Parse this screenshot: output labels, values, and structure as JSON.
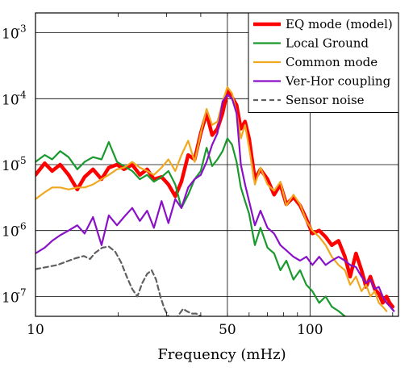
{
  "chart_data": {
    "type": "line",
    "title": "",
    "xlabel": "Frequency (mHz)",
    "ylabel": "",
    "xscale": "log",
    "yscale": "log",
    "xlim": [
      10,
      210
    ],
    "ylim": [
      5e-08,
      0.002
    ],
    "grid": true,
    "legend_position": "top-right",
    "x_ticks": [
      {
        "value": 10,
        "label": "10"
      },
      {
        "value": 50,
        "label": "50"
      },
      {
        "value": 100,
        "label": "100"
      }
    ],
    "y_ticks": [
      {
        "value": 0.001,
        "base": "10",
        "exp": "-3"
      },
      {
        "value": 0.0001,
        "base": "10",
        "exp": "-4"
      },
      {
        "value": 1e-05,
        "base": "10",
        "exp": "-5"
      },
      {
        "value": 1e-06,
        "base": "10",
        "exp": "-6"
      },
      {
        "value": 1e-07,
        "base": "10",
        "exp": "-7"
      }
    ],
    "series": [
      {
        "name": "EQ mode (model)",
        "color": "#ff0000",
        "width": 4.5,
        "dash": "",
        "x": [
          10,
          10.8,
          11.5,
          12.3,
          13.2,
          14.2,
          15.1,
          16.2,
          17.4,
          18.5,
          19.8,
          21,
          22.5,
          24,
          25.5,
          27,
          28.8,
          30.5,
          32.3,
          34,
          36,
          38,
          40,
          42,
          44,
          46,
          48,
          50,
          52,
          54,
          56,
          58,
          60,
          63,
          66,
          70,
          74,
          78,
          82,
          87,
          92,
          97,
          102,
          108,
          114,
          120,
          127,
          134,
          140,
          147,
          154,
          160,
          166,
          172,
          178,
          184,
          190,
          195,
          200
        ],
        "y": [
          7e-06,
          1.05e-05,
          8e-06,
          1e-05,
          7e-06,
          4.2e-06,
          6.5e-06,
          8.5e-06,
          6e-06,
          9e-06,
          1e-05,
          8.5e-06,
          1e-05,
          7e-06,
          8.5e-06,
          6e-06,
          6.5e-06,
          5e-06,
          3.3e-06,
          5.5e-06,
          1.4e-05,
          1.2e-05,
          3e-05,
          6e-05,
          2.8e-05,
          3.5e-05,
          6e-05,
          0.00013,
          0.000105,
          8e-05,
          3.5e-05,
          4.5e-05,
          2.5e-05,
          6e-06,
          8.5e-06,
          6e-06,
          3.5e-06,
          5e-06,
          2.5e-06,
          3.2e-06,
          2.4e-06,
          1.5e-06,
          9e-07,
          1e-06,
          8e-07,
          6e-07,
          7e-07,
          4e-07,
          2e-07,
          4.5e-07,
          2.5e-07,
          1.4e-07,
          2e-07,
          1.3e-07,
          1.1e-07,
          8e-08,
          1e-07,
          8e-08,
          7e-08
        ]
      },
      {
        "name": "Local Ground",
        "color": "#1a9a2e",
        "width": 2.2,
        "dash": "",
        "x": [
          10,
          10.8,
          11.5,
          12.3,
          13.2,
          14.2,
          15.1,
          16.2,
          17.4,
          18.5,
          19.8,
          21,
          22.5,
          24,
          25.5,
          27,
          28.8,
          30.5,
          32.3,
          34,
          36,
          38,
          40,
          42,
          44,
          46,
          48,
          50,
          52,
          54,
          56,
          58,
          60,
          63,
          66,
          70,
          74,
          78,
          82,
          87,
          92,
          97,
          102,
          108,
          114,
          120,
          127,
          134
        ],
        "y": [
          1.1e-05,
          1.4e-05,
          1.2e-05,
          1.6e-05,
          1.3e-05,
          8.5e-06,
          1.1e-05,
          1.3e-05,
          1.2e-05,
          2.2e-05,
          1.1e-05,
          9.5e-06,
          8e-06,
          6e-06,
          7e-06,
          5.5e-06,
          6.5e-06,
          8e-06,
          5e-06,
          2.2e-06,
          3.5e-06,
          6e-06,
          8e-06,
          1.8e-05,
          9.5e-06,
          1.2e-05,
          1.6e-05,
          2.5e-05,
          2e-05,
          1.1e-05,
          4.5e-06,
          2.8e-06,
          1.8e-06,
          6e-07,
          1.1e-06,
          5.5e-07,
          4.5e-07,
          2.5e-07,
          3.5e-07,
          1.8e-07,
          2.5e-07,
          1.5e-07,
          1.2e-07,
          8e-08,
          1e-07,
          7e-08,
          6e-08,
          5e-08
        ]
      },
      {
        "name": "Common mode",
        "color": "#f0a820",
        "width": 2.2,
        "dash": "",
        "x": [
          10,
          10.8,
          11.5,
          12.3,
          13.2,
          14.2,
          15.1,
          16.2,
          17.4,
          18.5,
          19.8,
          21,
          22.5,
          24,
          25.5,
          27,
          28.8,
          30.5,
          32.3,
          34,
          36,
          38,
          40,
          42,
          44,
          46,
          48,
          50,
          52,
          54,
          56,
          58,
          60,
          63,
          66,
          70,
          74,
          78,
          82,
          87,
          92,
          97,
          102,
          108,
          114,
          120,
          127,
          134,
          140,
          147,
          154,
          160,
          166,
          172,
          178,
          184,
          190
        ],
        "y": [
          3e-06,
          3.8e-06,
          4.5e-06,
          4.5e-06,
          4.2e-06,
          4.5e-06,
          4.5e-06,
          5e-06,
          6e-06,
          7e-06,
          8.5e-06,
          9e-06,
          1.1e-05,
          9e-06,
          8e-06,
          7e-06,
          9e-06,
          1.2e-05,
          8e-06,
          1.4e-05,
          2.3e-05,
          1.1e-05,
          3e-05,
          7e-05,
          4e-05,
          4.5e-05,
          9e-05,
          0.00015,
          0.00012,
          6e-05,
          2.5e-05,
          4e-05,
          1.8e-05,
          5e-06,
          9e-06,
          5e-06,
          4e-06,
          5.5e-06,
          2.4e-06,
          3.5e-06,
          2.5e-06,
          1.4e-06,
          1e-06,
          8e-07,
          6e-07,
          4e-07,
          3e-07,
          2.5e-07,
          1.5e-07,
          2e-07,
          1.2e-07,
          1.5e-07,
          1e-07,
          1.2e-07,
          8e-08,
          7e-08,
          6e-08
        ]
      },
      {
        "name": "Ver-Hor coupling",
        "color": "#8a10c8",
        "width": 2.2,
        "dash": "",
        "x": [
          10,
          10.8,
          11.5,
          12.3,
          13.2,
          14.2,
          15.1,
          16.2,
          17.4,
          18.5,
          19.8,
          21,
          22.5,
          24,
          25.5,
          27,
          28.8,
          30.5,
          32.3,
          34,
          36,
          38,
          40,
          42,
          44,
          46,
          48,
          50,
          52,
          54,
          56,
          58,
          60,
          63,
          66,
          70,
          74,
          78,
          82,
          87,
          92,
          97,
          102,
          108,
          114,
          120,
          127,
          134,
          140,
          147,
          154,
          160,
          166,
          172,
          178,
          184,
          190,
          196,
          202
        ],
        "y": [
          4.5e-07,
          5.5e-07,
          7e-07,
          8.5e-07,
          1e-06,
          1.2e-06,
          9e-07,
          1.6e-06,
          6e-07,
          1.7e-06,
          1.2e-06,
          1.6e-06,
          2.2e-06,
          1.4e-06,
          2e-06,
          1.1e-06,
          2.8e-06,
          1.3e-06,
          3e-06,
          2.2e-06,
          4.5e-06,
          6e-06,
          7e-06,
          1.1e-05,
          2e-05,
          3e-05,
          9e-05,
          0.000115,
          0.0001,
          6e-05,
          1e-05,
          5e-06,
          2.8e-06,
          1.2e-06,
          2e-06,
          1.1e-06,
          9e-07,
          6e-07,
          5e-07,
          4e-07,
          3.5e-07,
          4e-07,
          3e-07,
          4e-07,
          3e-07,
          3.5e-07,
          4e-07,
          3.5e-07,
          3e-07,
          2.8e-07,
          2e-07,
          1.6e-07,
          1.8e-07,
          1.3e-07,
          1.4e-07,
          1e-07,
          8e-08,
          7e-08,
          6e-08
        ]
      },
      {
        "name": "Sensor noise",
        "color": "#606060",
        "width": 2.2,
        "dash": "6,4",
        "x": [
          10,
          11,
          12,
          13,
          14,
          15,
          15.8,
          16.5,
          17.5,
          18.5,
          19.5,
          20.5,
          21.5,
          22.5,
          23.5,
          24.5,
          25.5,
          26.5,
          27.5,
          28.5,
          29.5,
          30.5,
          31.5,
          32.5,
          33.5,
          34.5,
          35.5,
          37,
          38.5,
          40
        ],
        "y": [
          2.6e-07,
          2.8e-07,
          3e-07,
          3.4e-07,
          3.8e-07,
          4.1e-07,
          3.7e-07,
          4.6e-07,
          5.5e-07,
          5.7e-07,
          4.8e-07,
          3.3e-07,
          2e-07,
          1.3e-07,
          1e-07,
          1.6e-07,
          2.2e-07,
          2.5e-07,
          1.8e-07,
          1e-07,
          6.5e-08,
          5e-08,
          4.5e-08,
          4.5e-08,
          5.5e-08,
          6.5e-08,
          6e-08,
          5.5e-08,
          5.5e-08,
          5e-08
        ]
      }
    ]
  }
}
